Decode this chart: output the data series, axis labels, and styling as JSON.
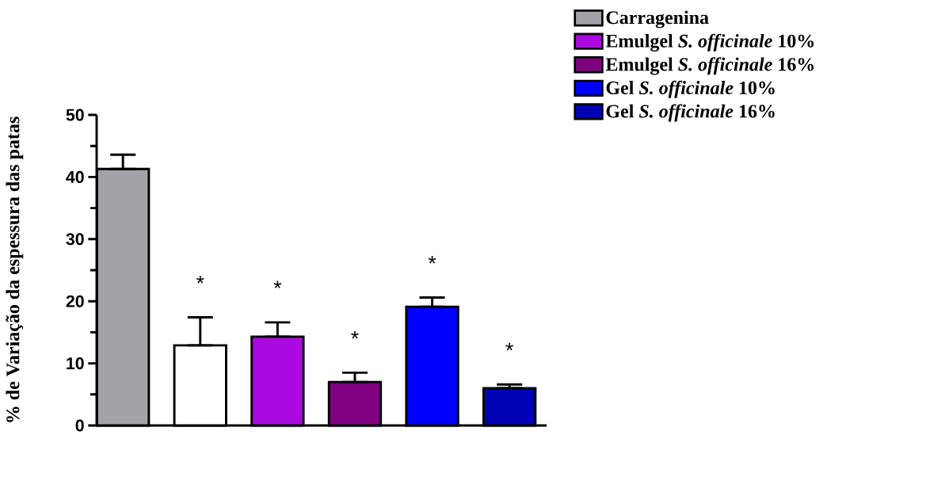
{
  "chart_data": {
    "type": "bar",
    "ylabel": "% de Variação da espessura das patas",
    "categories": [
      null,
      null,
      null,
      null,
      null,
      null
    ],
    "series": [
      {
        "name": "Carragenina",
        "color": "#a3a2a8",
        "values": [
          41.3,
          null,
          null,
          null,
          null,
          null
        ],
        "errors": [
          [
            41.3,
            43.6
          ],
          null,
          null,
          null,
          null,
          null
        ]
      },
      {
        "color": "#ffffff",
        "values": [
          null,
          12.9,
          null,
          null,
          null,
          null
        ],
        "errors": [
          null,
          [
            12.9,
            17.4
          ],
          null,
          null,
          null,
          null
        ]
      },
      {
        "name": "Emulgel *S. officinale* 10%",
        "color": "#aa0ae0",
        "values": [
          null,
          null,
          14.3,
          null,
          null,
          null
        ],
        "errors": [
          null,
          null,
          [
            14.3,
            16.6
          ],
          null,
          null,
          null
        ]
      },
      {
        "name": "Emulgel *S. officinale* 16%",
        "color": "#800080",
        "values": [
          null,
          null,
          null,
          7.0,
          null,
          null
        ],
        "errors": [
          null,
          null,
          null,
          [
            7.0,
            8.5
          ],
          null,
          null
        ]
      },
      {
        "name": "Gel *S. officinale* 10%",
        "color": "#0000ff",
        "values": [
          null,
          null,
          null,
          null,
          19.1,
          null
        ],
        "errors": [
          null,
          null,
          null,
          null,
          [
            19.1,
            20.6
          ],
          null
        ]
      },
      {
        "name": "Gel *S. officinale* 16%",
        "color": "#0000b4",
        "values": [
          null,
          null,
          null,
          null,
          null,
          6.0
        ],
        "errors": [
          null,
          null,
          null,
          null,
          null,
          [
            6.0,
            6.6
          ]
        ]
      }
    ],
    "ylim": [
      0,
      50
    ],
    "yticks": [
      0,
      10,
      20,
      30,
      40,
      50
    ],
    "annotations": [
      "*",
      "*",
      "*",
      "*",
      "*"
    ],
    "legend": "top right"
  }
}
